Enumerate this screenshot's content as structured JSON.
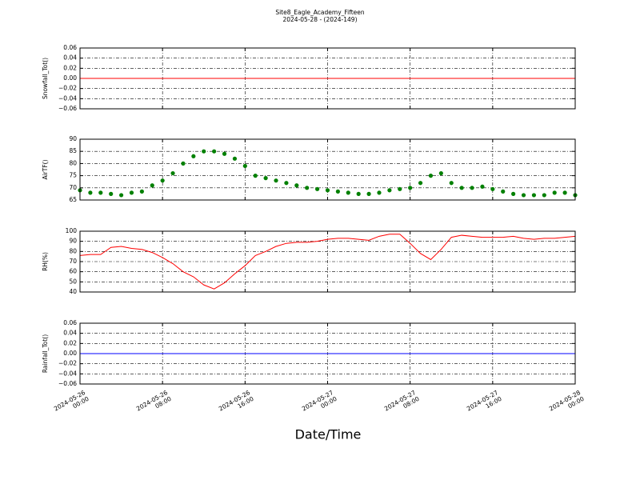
{
  "title": "Site8_Eagle_Academy_Fifteen",
  "subtitle": "2024-05-28 - (2024-149)",
  "xlabel": "Date/Time",
  "xlim": [
    "2024-05-26 00:00",
    "2024-05-28 00:00"
  ],
  "xticks": [
    {
      "value": "2024-05-26 00:00",
      "label": "2024-05-26\n00:00"
    },
    {
      "value": "2024-05-26 08:00",
      "label": "2024-05-26\n08:00"
    },
    {
      "value": "2024-05-26 16:00",
      "label": "2024-05-26\n16:00"
    },
    {
      "value": "2024-05-27 00:00",
      "label": "2024-05-27\n00:00"
    },
    {
      "value": "2024-05-27 08:00",
      "label": "2024-05-27\n08:00"
    },
    {
      "value": "2024-05-27 16:00",
      "label": "2024-05-27\n16:00"
    },
    {
      "value": "2024-05-28 00:00",
      "label": "2024-05-28\n00:00"
    }
  ],
  "chart_data": [
    {
      "type": "line",
      "ylabel": "Snowfall_Tot()",
      "grid": true,
      "series": [
        {
          "name": "Snowfall_Tot",
          "color": "#ff0000",
          "x": [
            "2024-05-26 00:00",
            "2024-05-28 00:00"
          ],
          "values": [
            0,
            0
          ]
        }
      ],
      "ylim": [
        -0.06,
        0.06
      ],
      "yticks": [
        {
          "value": -0.06,
          "label": "−0.06"
        },
        {
          "value": -0.04,
          "label": "−0.04"
        },
        {
          "value": -0.02,
          "label": "−0.02"
        },
        {
          "value": 0,
          "label": "0.00"
        },
        {
          "value": 0.02,
          "label": "0.02"
        },
        {
          "value": 0.04,
          "label": "0.04"
        },
        {
          "value": 0.06,
          "label": "0.06"
        }
      ]
    },
    {
      "type": "scatter",
      "ylabel": "AirTF()",
      "grid": true,
      "series": [
        {
          "name": "AirTF",
          "color": "#008000",
          "x": [
            "2024-05-26 00:00",
            "2024-05-26 01:00",
            "2024-05-26 02:00",
            "2024-05-26 03:00",
            "2024-05-26 04:00",
            "2024-05-26 05:00",
            "2024-05-26 06:00",
            "2024-05-26 07:00",
            "2024-05-26 08:00",
            "2024-05-26 09:00",
            "2024-05-26 10:00",
            "2024-05-26 11:00",
            "2024-05-26 12:00",
            "2024-05-26 13:00",
            "2024-05-26 14:00",
            "2024-05-26 15:00",
            "2024-05-26 16:00",
            "2024-05-26 17:00",
            "2024-05-26 18:00",
            "2024-05-26 19:00",
            "2024-05-26 20:00",
            "2024-05-26 21:00",
            "2024-05-26 22:00",
            "2024-05-26 23:00",
            "2024-05-27 00:00",
            "2024-05-27 01:00",
            "2024-05-27 02:00",
            "2024-05-27 03:00",
            "2024-05-27 04:00",
            "2024-05-27 05:00",
            "2024-05-27 06:00",
            "2024-05-27 07:00",
            "2024-05-27 08:00",
            "2024-05-27 09:00",
            "2024-05-27 10:00",
            "2024-05-27 11:00",
            "2024-05-27 12:00",
            "2024-05-27 13:00",
            "2024-05-27 14:00",
            "2024-05-27 15:00",
            "2024-05-27 16:00",
            "2024-05-27 17:00",
            "2024-05-27 18:00",
            "2024-05-27 19:00",
            "2024-05-27 20:00",
            "2024-05-27 21:00",
            "2024-05-27 22:00",
            "2024-05-27 23:00",
            "2024-05-28 00:00"
          ],
          "values": [
            69,
            68,
            68,
            67.5,
            67,
            68,
            68.5,
            71,
            73,
            76,
            80,
            83,
            85,
            85,
            84,
            82,
            79,
            75,
            74,
            73,
            72,
            71,
            70,
            69.5,
            69,
            68.5,
            68,
            67.5,
            67.5,
            68,
            69,
            69.5,
            70,
            72,
            75,
            76,
            72,
            70,
            70,
            70.5,
            69.5,
            68.5,
            67.5,
            67,
            67,
            67,
            68,
            68,
            67
          ]
        }
      ],
      "ylim": [
        65,
        90
      ],
      "yticks": [
        65,
        70,
        75,
        80,
        85,
        90
      ]
    },
    {
      "type": "line",
      "ylabel": "RH(%)",
      "grid": true,
      "series": [
        {
          "name": "RH",
          "color": "#ff0000",
          "x": [
            "2024-05-26 00:00",
            "2024-05-26 01:00",
            "2024-05-26 02:00",
            "2024-05-26 03:00",
            "2024-05-26 04:00",
            "2024-05-26 05:00",
            "2024-05-26 06:00",
            "2024-05-26 07:00",
            "2024-05-26 08:00",
            "2024-05-26 09:00",
            "2024-05-26 10:00",
            "2024-05-26 11:00",
            "2024-05-26 12:00",
            "2024-05-26 13:00",
            "2024-05-26 14:00",
            "2024-05-26 15:00",
            "2024-05-26 16:00",
            "2024-05-26 17:00",
            "2024-05-26 18:00",
            "2024-05-26 19:00",
            "2024-05-26 20:00",
            "2024-05-26 21:00",
            "2024-05-26 22:00",
            "2024-05-26 23:00",
            "2024-05-27 00:00",
            "2024-05-27 01:00",
            "2024-05-27 02:00",
            "2024-05-27 03:00",
            "2024-05-27 04:00",
            "2024-05-27 05:00",
            "2024-05-27 06:00",
            "2024-05-27 07:00",
            "2024-05-27 08:00",
            "2024-05-27 09:00",
            "2024-05-27 10:00",
            "2024-05-27 11:00",
            "2024-05-27 12:00",
            "2024-05-27 13:00",
            "2024-05-27 14:00",
            "2024-05-27 15:00",
            "2024-05-27 16:00",
            "2024-05-27 17:00",
            "2024-05-27 18:00",
            "2024-05-27 19:00",
            "2024-05-27 20:00",
            "2024-05-27 21:00",
            "2024-05-27 22:00",
            "2024-05-27 23:00",
            "2024-05-28 00:00"
          ],
          "values": [
            76,
            77,
            77,
            84,
            85,
            83,
            82,
            79,
            74,
            68,
            60,
            55,
            47,
            43,
            49,
            58,
            66,
            76,
            80,
            85,
            88,
            89,
            89,
            90,
            92,
            93,
            93,
            92,
            91,
            95,
            97,
            97,
            88,
            78,
            72,
            82,
            94,
            96,
            95,
            94,
            94,
            94,
            95,
            93,
            92,
            93,
            93,
            94,
            95
          ]
        }
      ],
      "ylim": [
        40,
        100
      ],
      "yticks": [
        40,
        50,
        60,
        70,
        80,
        90,
        100
      ]
    },
    {
      "type": "line",
      "ylabel": "Rainfall_Tot()",
      "grid": true,
      "series": [
        {
          "name": "Rainfall_Tot",
          "color": "#0000ff",
          "x": [
            "2024-05-26 00:00",
            "2024-05-28 00:00"
          ],
          "values": [
            0,
            0
          ]
        }
      ],
      "ylim": [
        -0.06,
        0.06
      ],
      "yticks": [
        {
          "value": -0.06,
          "label": "−0.06"
        },
        {
          "value": -0.04,
          "label": "−0.04"
        },
        {
          "value": -0.02,
          "label": "−0.02"
        },
        {
          "value": 0,
          "label": "0.00"
        },
        {
          "value": 0.02,
          "label": "0.02"
        },
        {
          "value": 0.04,
          "label": "0.04"
        },
        {
          "value": 0.06,
          "label": "0.06"
        }
      ]
    }
  ]
}
